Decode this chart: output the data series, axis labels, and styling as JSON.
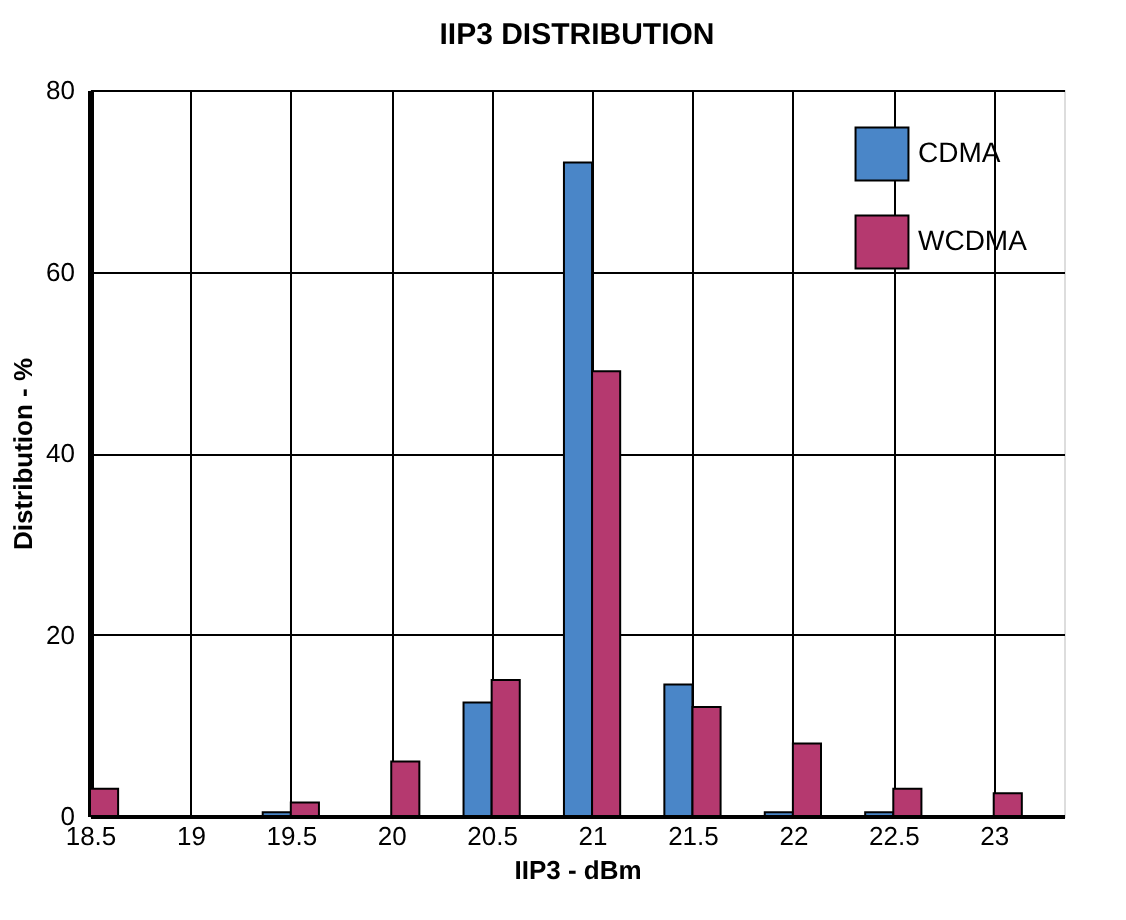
{
  "chart_data": {
    "type": "bar",
    "title": "IIP3 DISTRIBUTION",
    "xlabel": "IIP3 - dBm",
    "ylabel": "Distribution - %",
    "x": [
      18.5,
      19,
      19.5,
      20,
      20.5,
      21,
      21.5,
      22,
      22.5,
      23
    ],
    "series": [
      {
        "name": "CDMA",
        "color": "#4a86c8",
        "values": [
          null,
          null,
          0.4,
          null,
          12.5,
          72,
          14.5,
          0.4,
          0.4,
          null
        ]
      },
      {
        "name": "WCDMA",
        "color": "#b5396f",
        "values": [
          3,
          null,
          1.5,
          6,
          15,
          49,
          12,
          8,
          3,
          2.5
        ]
      }
    ],
    "xlim": [
      18.5,
      23.35
    ],
    "xticks": [
      18.5,
      19,
      19.5,
      20,
      20.5,
      21,
      21.5,
      22,
      22.5,
      23
    ],
    "ylim": [
      0,
      80
    ],
    "yticks": [
      0,
      20,
      40,
      60,
      80
    ],
    "grid": true,
    "legend": "top right"
  }
}
